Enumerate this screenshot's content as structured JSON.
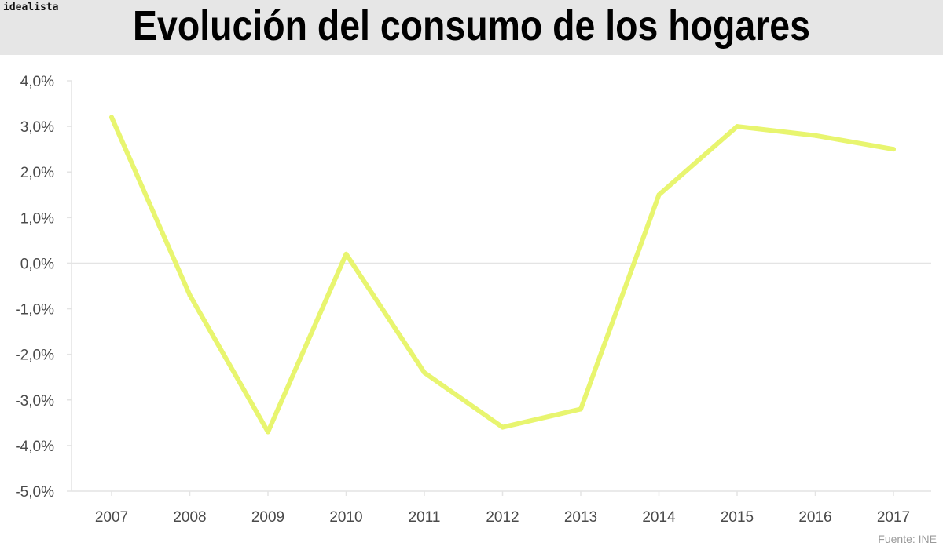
{
  "brand": "idealista",
  "source_note": "Fuente: INE",
  "colors": {
    "header_bg": "#e6e6e6",
    "series_line": "#e8f56f",
    "grid": "#e4e4e4",
    "tick_text": "#4a4a4a"
  },
  "chart_data": {
    "type": "line",
    "title": "Evolución del consumo de los hogares",
    "xlabel": "",
    "ylabel": "",
    "categories": [
      "2007",
      "2008",
      "2009",
      "2010",
      "2011",
      "2012",
      "2013",
      "2014",
      "2015",
      "2016",
      "2017"
    ],
    "series": [
      {
        "values": [
          3.2,
          -0.7,
          -3.7,
          0.2,
          -2.4,
          -3.6,
          -3.2,
          1.5,
          3.0,
          2.8,
          2.5
        ]
      }
    ],
    "ylim": [
      -5,
      4
    ],
    "yticks": [
      4,
      3,
      2,
      1,
      0,
      -1,
      -2,
      -3,
      -4,
      -5
    ],
    "ytick_labels": [
      "4,0%",
      "3,0%",
      "2,0%",
      "1,0%",
      "0,0%",
      "-1,0%",
      "-2,0%",
      "-3,0%",
      "-4,0%",
      "-5,0%"
    ],
    "grid": "horizontal zero line only",
    "legend": "none"
  }
}
